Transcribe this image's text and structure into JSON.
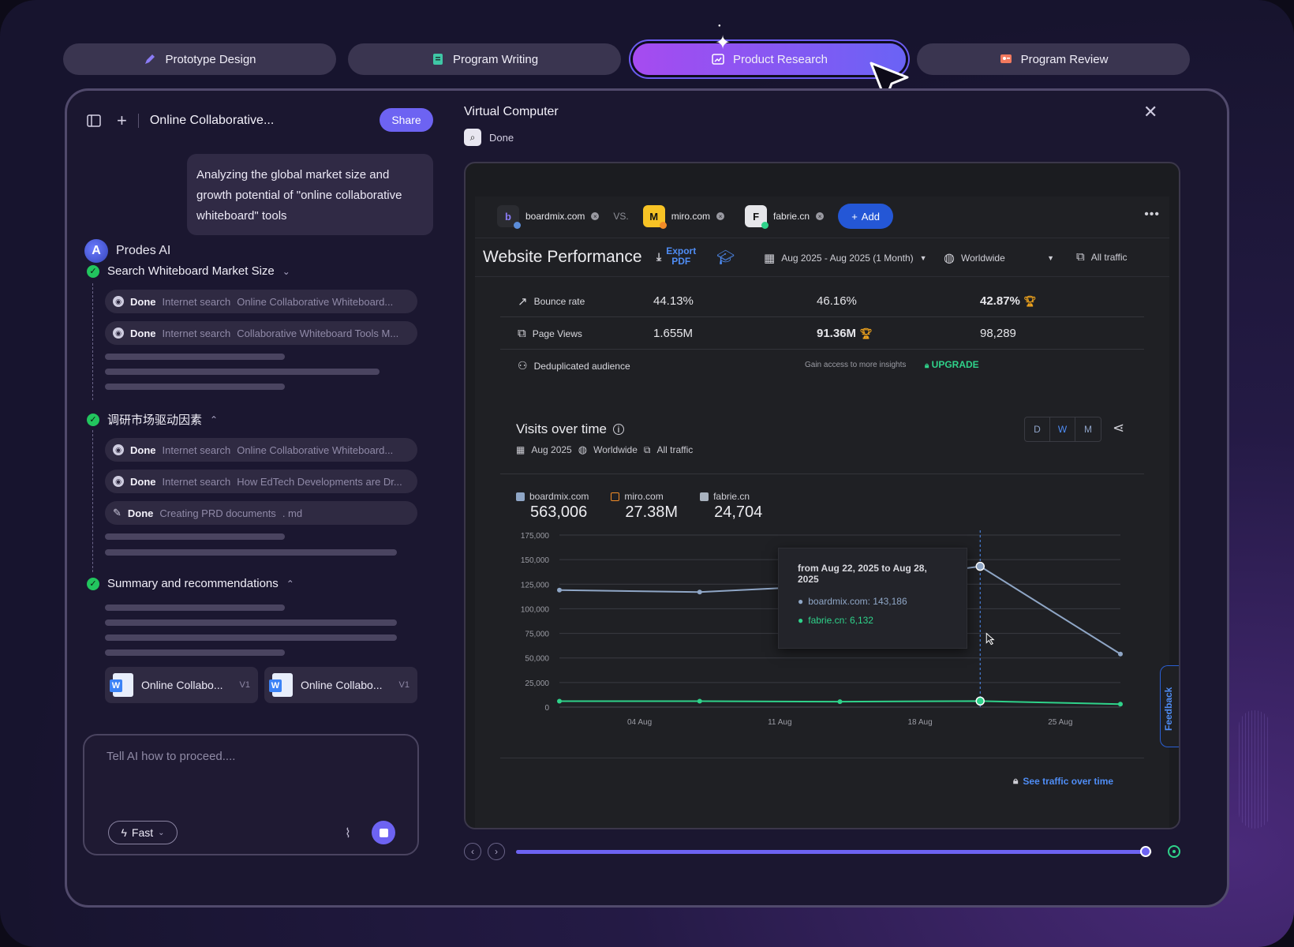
{
  "tabs": [
    {
      "label": "Prototype Design",
      "icon": "pen-icon",
      "active": false
    },
    {
      "label": "Program Writing",
      "icon": "document-icon",
      "active": false
    },
    {
      "label": "Product Research",
      "icon": "chart-window-icon",
      "active": true
    },
    {
      "label": "Program Review",
      "icon": "presentation-icon",
      "active": false
    }
  ],
  "left": {
    "title": "Online Collaborative...",
    "share_label": "Share",
    "user_message": "Analyzing the global market size and growth potential of \"online collaborative whiteboard\" tools",
    "assistant_name": "Prodes AI",
    "sections": [
      {
        "title": "Search Whiteboard Market Size",
        "steps": [
          {
            "status": "Done",
            "type": "Internet search",
            "text": "Online Collaborative Whiteboard..."
          },
          {
            "status": "Done",
            "type": "Internet search",
            "text": "Collaborative Whiteboard Tools M..."
          }
        ]
      },
      {
        "title": "调研市场驱动因素",
        "steps": [
          {
            "status": "Done",
            "type": "Internet search",
            "text": "Online Collaborative Whiteboard..."
          },
          {
            "status": "Done",
            "type": "Internet search",
            "text": "How EdTech Developments are Dr..."
          },
          {
            "status": "Done",
            "type": "Creating PRD documents",
            "text": ". md"
          }
        ]
      },
      {
        "title": "Summary and recommendations",
        "steps": []
      }
    ],
    "docs": [
      {
        "name": "Online Collabo...",
        "version": "V1"
      },
      {
        "name": "Online Collabo...",
        "version": "V1"
      }
    ],
    "input_placeholder": "Tell AI how to proceed....",
    "mode_label": "Fast"
  },
  "vc": {
    "title": "Virtual Computer",
    "status": "Done"
  },
  "site": {
    "competitors": [
      {
        "name": "boardmix.com",
        "logo": "b",
        "color": "#5b8dd9"
      },
      {
        "name": "miro.com",
        "logo": "M",
        "color": "#f28c28"
      },
      {
        "name": "fabrie.cn",
        "logo": "F",
        "color": "#2fd28a"
      }
    ],
    "vs_label": "VS.",
    "add_label": "Add",
    "section_title": "Website Performance",
    "export_label_1": "Export",
    "export_label_2": "PDF",
    "date_range": "Aug 2025 - Aug 2025 (1 Month)",
    "region": "Worldwide",
    "traffic": "All traffic",
    "metrics": [
      {
        "label": "Bounce rate",
        "values": [
          "44.13%",
          "46.16%",
          "42.87%"
        ],
        "winner": 2
      },
      {
        "label": "Page Views",
        "values": [
          "1.655M",
          "91.36M",
          "98,289"
        ],
        "winner": 1
      }
    ],
    "dedup_label": "Deduplicated audience",
    "gain_text": "Gain access to more insights",
    "upgrade_label": "UPGRADE",
    "visits": {
      "title": "Visits over time",
      "period": "Aug 2025",
      "region": "Worldwide",
      "traffic": "All traffic",
      "granularity": [
        "D",
        "W",
        "M"
      ],
      "legend": [
        {
          "name": "boardmix.com",
          "total": "563,006",
          "checked": true,
          "color": "#8fa6c6"
        },
        {
          "name": "miro.com",
          "total": "27.38M",
          "checked": false,
          "color": "#f28c28"
        },
        {
          "name": "fabrie.cn",
          "total": "24,704",
          "checked": true,
          "color": "#2fd28a"
        }
      ],
      "tooltip": {
        "title": "from Aug 22, 2025 to Aug 28, 2025",
        "rows": [
          "boardmix.com: 143,186",
          "fabrie.cn: 6,132"
        ]
      },
      "see_traffic": "See traffic over time"
    },
    "feedback_label": "Feedback"
  },
  "chart_data": {
    "type": "line",
    "x": [
      "2025-07-31",
      "2025-08-07",
      "2025-08-14",
      "2025-08-21",
      "2025-08-28"
    ],
    "x_tick_labels": [
      "04 Aug",
      "11 Aug",
      "18 Aug",
      "25 Aug"
    ],
    "y_tick_labels": [
      "175,000",
      "150,000",
      "125,000",
      "100,000",
      "75,000",
      "50,000",
      "25,000",
      "0"
    ],
    "ylim": [
      0,
      175000
    ],
    "series": [
      {
        "name": "boardmix.com",
        "color": "#8fa6c6",
        "values": [
          119000,
          117000,
          124000,
          143186,
          54000
        ]
      },
      {
        "name": "fabrie.cn",
        "color": "#2fd28a",
        "values": [
          6000,
          6000,
          5500,
          6132,
          3000
        ]
      }
    ],
    "highlight_index": 3,
    "grid": true
  },
  "player": {
    "progress": 0.99
  }
}
